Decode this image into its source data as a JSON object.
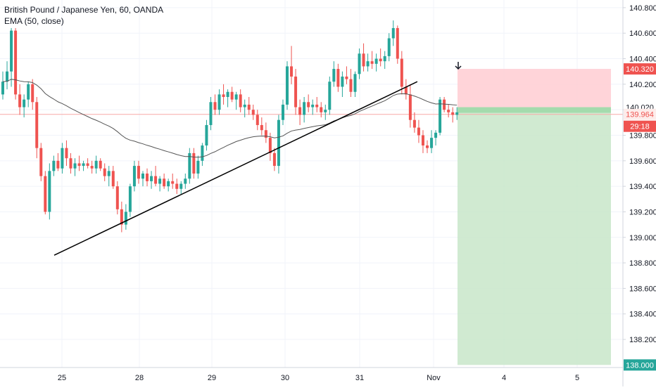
{
  "legend": {
    "symbol": "British Pound / Japanese Yen, 60, OANDA",
    "indicator": "EMA (50, close)"
  },
  "colors": {
    "up": "#26a69a",
    "down": "#ef5350",
    "grid": "#f0f3fa",
    "axis_text": "#131722",
    "ema": "#555555",
    "trendline": "#000000",
    "stop_zone": "#ffcdd2",
    "target_zone": "#c8e6c9",
    "stop_label": "#ef5350",
    "target_label": "#26a69a",
    "entry_label": "#1e8e5a"
  },
  "icons": {
    "marker": "down-arrow-icon"
  },
  "chart_data": {
    "type": "candlestick",
    "title": "British Pound / Japanese Yen, 60, OANDA",
    "indicator": "EMA (50, close)",
    "y_ticks": [
      "140.800",
      "140.600",
      "140.400",
      "140.200",
      "140.000",
      "139.800",
      "139.600",
      "139.400",
      "139.200",
      "139.000",
      "138.800",
      "138.600",
      "138.400",
      "138.200"
    ],
    "ylim": [
      137.98,
      140.86
    ],
    "x_ticks": [
      {
        "label": "25",
        "index": 0
      },
      {
        "label": "28",
        "index": 1
      },
      {
        "label": "29",
        "index": 2
      },
      {
        "label": "30",
        "index": 3
      },
      {
        "label": "31",
        "index": 4
      },
      {
        "label": "Nov",
        "index": 5
      },
      {
        "label": "4",
        "index": 6
      },
      {
        "label": "5",
        "index": 7
      }
    ],
    "price_labels": {
      "stop": "140.320",
      "entry": "140.020",
      "last": "139.964",
      "countdown": "29:18",
      "target": "138.000"
    },
    "position": {
      "stop": 140.32,
      "entry": 140.02,
      "target": 138.0
    },
    "trendline": {
      "start": {
        "day": 24.7,
        "price": 138.86
      },
      "end": {
        "day": 31.78,
        "price": 140.22
      }
    },
    "candles": [
      [
        140.12,
        140.3,
        140.08,
        140.22
      ],
      [
        140.22,
        140.38,
        140.16,
        140.3
      ],
      [
        140.3,
        140.64,
        140.18,
        140.62
      ],
      [
        140.62,
        140.64,
        140.08,
        140.12
      ],
      [
        140.12,
        140.2,
        139.96,
        140.02
      ],
      [
        140.02,
        140.12,
        139.94,
        140.08
      ],
      [
        140.08,
        140.22,
        140.02,
        140.2
      ],
      [
        140.2,
        140.24,
        140.0,
        140.06
      ],
      [
        140.06,
        140.1,
        139.62,
        139.7
      ],
      [
        139.7,
        139.74,
        139.44,
        139.48
      ],
      [
        139.48,
        139.52,
        139.18,
        139.2
      ],
      [
        139.2,
        139.58,
        139.14,
        139.52
      ],
      [
        139.52,
        139.64,
        139.48,
        139.6
      ],
      [
        139.6,
        139.66,
        139.52,
        139.54
      ],
      [
        139.54,
        139.74,
        139.5,
        139.7
      ],
      [
        139.7,
        139.76,
        139.56,
        139.62
      ],
      [
        139.62,
        139.66,
        139.5,
        139.54
      ],
      [
        139.54,
        139.62,
        139.48,
        139.58
      ],
      [
        139.58,
        139.64,
        139.52,
        139.56
      ],
      [
        139.56,
        139.6,
        139.52,
        139.58
      ],
      [
        139.58,
        139.62,
        139.54,
        139.56
      ],
      [
        139.56,
        139.6,
        139.5,
        139.54
      ],
      [
        139.54,
        139.64,
        139.5,
        139.6
      ],
      [
        139.6,
        139.62,
        139.52,
        139.54
      ],
      [
        139.54,
        139.58,
        139.44,
        139.48
      ],
      [
        139.48,
        139.56,
        139.4,
        139.52
      ],
      [
        139.52,
        139.56,
        139.38,
        139.4
      ],
      [
        139.4,
        139.44,
        139.18,
        139.22
      ],
      [
        139.22,
        139.28,
        139.04,
        139.1
      ],
      [
        139.1,
        139.26,
        139.06,
        139.2
      ],
      [
        139.2,
        139.42,
        139.16,
        139.4
      ],
      [
        139.4,
        139.6,
        139.36,
        139.56
      ],
      [
        139.56,
        139.6,
        139.42,
        139.46
      ],
      [
        139.46,
        139.52,
        139.4,
        139.5
      ],
      [
        139.5,
        139.54,
        139.4,
        139.44
      ],
      [
        139.44,
        139.52,
        139.38,
        139.48
      ],
      [
        139.48,
        139.56,
        139.4,
        139.42
      ],
      [
        139.42,
        139.48,
        139.36,
        139.46
      ],
      [
        139.46,
        139.5,
        139.38,
        139.4
      ],
      [
        139.4,
        139.46,
        139.36,
        139.44
      ],
      [
        139.44,
        139.5,
        139.38,
        139.42
      ],
      [
        139.42,
        139.46,
        139.34,
        139.38
      ],
      [
        139.38,
        139.44,
        139.34,
        139.42
      ],
      [
        139.42,
        139.5,
        139.38,
        139.46
      ],
      [
        139.46,
        139.7,
        139.42,
        139.66
      ],
      [
        139.66,
        139.7,
        139.46,
        139.5
      ],
      [
        139.5,
        139.64,
        139.46,
        139.6
      ],
      [
        139.6,
        139.74,
        139.56,
        139.72
      ],
      [
        139.72,
        139.92,
        139.68,
        139.88
      ],
      [
        139.88,
        140.1,
        139.84,
        140.06
      ],
      [
        140.06,
        140.12,
        139.96,
        140.0
      ],
      [
        140.0,
        140.16,
        139.96,
        140.12
      ],
      [
        140.12,
        140.2,
        140.04,
        140.1
      ],
      [
        140.1,
        140.16,
        140.02,
        140.14
      ],
      [
        140.14,
        140.18,
        140.06,
        140.08
      ],
      [
        140.08,
        140.14,
        140.0,
        140.12
      ],
      [
        140.12,
        140.16,
        139.98,
        140.02
      ],
      [
        140.02,
        140.08,
        139.94,
        140.04
      ],
      [
        140.04,
        140.1,
        139.96,
        140.0
      ],
      [
        140.0,
        140.04,
        139.92,
        139.96
      ],
      [
        139.96,
        140.0,
        139.84,
        139.88
      ],
      [
        139.88,
        139.94,
        139.8,
        139.84
      ],
      [
        139.84,
        139.9,
        139.74,
        139.78
      ],
      [
        139.78,
        139.82,
        139.6,
        139.66
      ],
      [
        139.66,
        139.7,
        139.52,
        139.56
      ],
      [
        139.56,
        139.96,
        139.5,
        139.92
      ],
      [
        139.92,
        140.08,
        139.88,
        140.04
      ],
      [
        140.04,
        140.38,
        140.0,
        140.34
      ],
      [
        140.34,
        140.5,
        140.2,
        140.26
      ],
      [
        140.26,
        140.32,
        139.96,
        140.02
      ],
      [
        140.02,
        140.08,
        139.88,
        139.96
      ],
      [
        139.96,
        140.1,
        139.9,
        140.06
      ],
      [
        140.06,
        140.12,
        139.98,
        140.02
      ],
      [
        140.02,
        140.08,
        139.96,
        140.04
      ],
      [
        140.04,
        140.1,
        139.98,
        140.02
      ],
      [
        140.02,
        140.06,
        139.94,
        139.98
      ],
      [
        139.98,
        140.04,
        139.92,
        140.0
      ],
      [
        140.0,
        140.26,
        139.96,
        140.22
      ],
      [
        140.22,
        140.38,
        140.18,
        140.32
      ],
      [
        140.32,
        140.36,
        140.14,
        140.18
      ],
      [
        140.18,
        140.3,
        140.1,
        140.26
      ],
      [
        140.26,
        140.34,
        140.2,
        140.24
      ],
      [
        140.24,
        140.32,
        140.1,
        140.14
      ],
      [
        140.14,
        140.3,
        140.1,
        140.28
      ],
      [
        140.28,
        140.48,
        140.24,
        140.44
      ],
      [
        140.44,
        140.52,
        140.3,
        140.34
      ],
      [
        140.34,
        140.44,
        140.3,
        140.38
      ],
      [
        140.38,
        140.46,
        140.32,
        140.36
      ],
      [
        140.36,
        140.44,
        140.3,
        140.4
      ],
      [
        140.4,
        140.48,
        140.34,
        140.38
      ],
      [
        140.38,
        140.46,
        140.32,
        140.42
      ],
      [
        140.42,
        140.6,
        140.38,
        140.56
      ],
      [
        140.56,
        140.7,
        140.5,
        140.64
      ],
      [
        140.64,
        140.66,
        140.36,
        140.4
      ],
      [
        140.4,
        140.46,
        140.12,
        140.18
      ],
      [
        140.18,
        140.24,
        140.08,
        140.12
      ],
      [
        140.12,
        140.2,
        139.86,
        139.92
      ],
      [
        139.92,
        139.98,
        139.82,
        139.86
      ],
      [
        139.86,
        139.92,
        139.74,
        139.8
      ],
      [
        139.8,
        139.84,
        139.66,
        139.72
      ],
      [
        139.72,
        139.76,
        139.66,
        139.7
      ],
      [
        139.7,
        139.84,
        139.66,
        139.78
      ],
      [
        139.78,
        139.84,
        139.72,
        139.82
      ],
      [
        139.82,
        140.1,
        139.8,
        140.08
      ],
      [
        140.08,
        140.1,
        139.98,
        140.0
      ],
      [
        140.0,
        140.04,
        139.94,
        139.98
      ],
      [
        139.98,
        140.02,
        139.9,
        139.96
      ],
      [
        139.96,
        140.02,
        139.92,
        139.98
      ]
    ]
  }
}
